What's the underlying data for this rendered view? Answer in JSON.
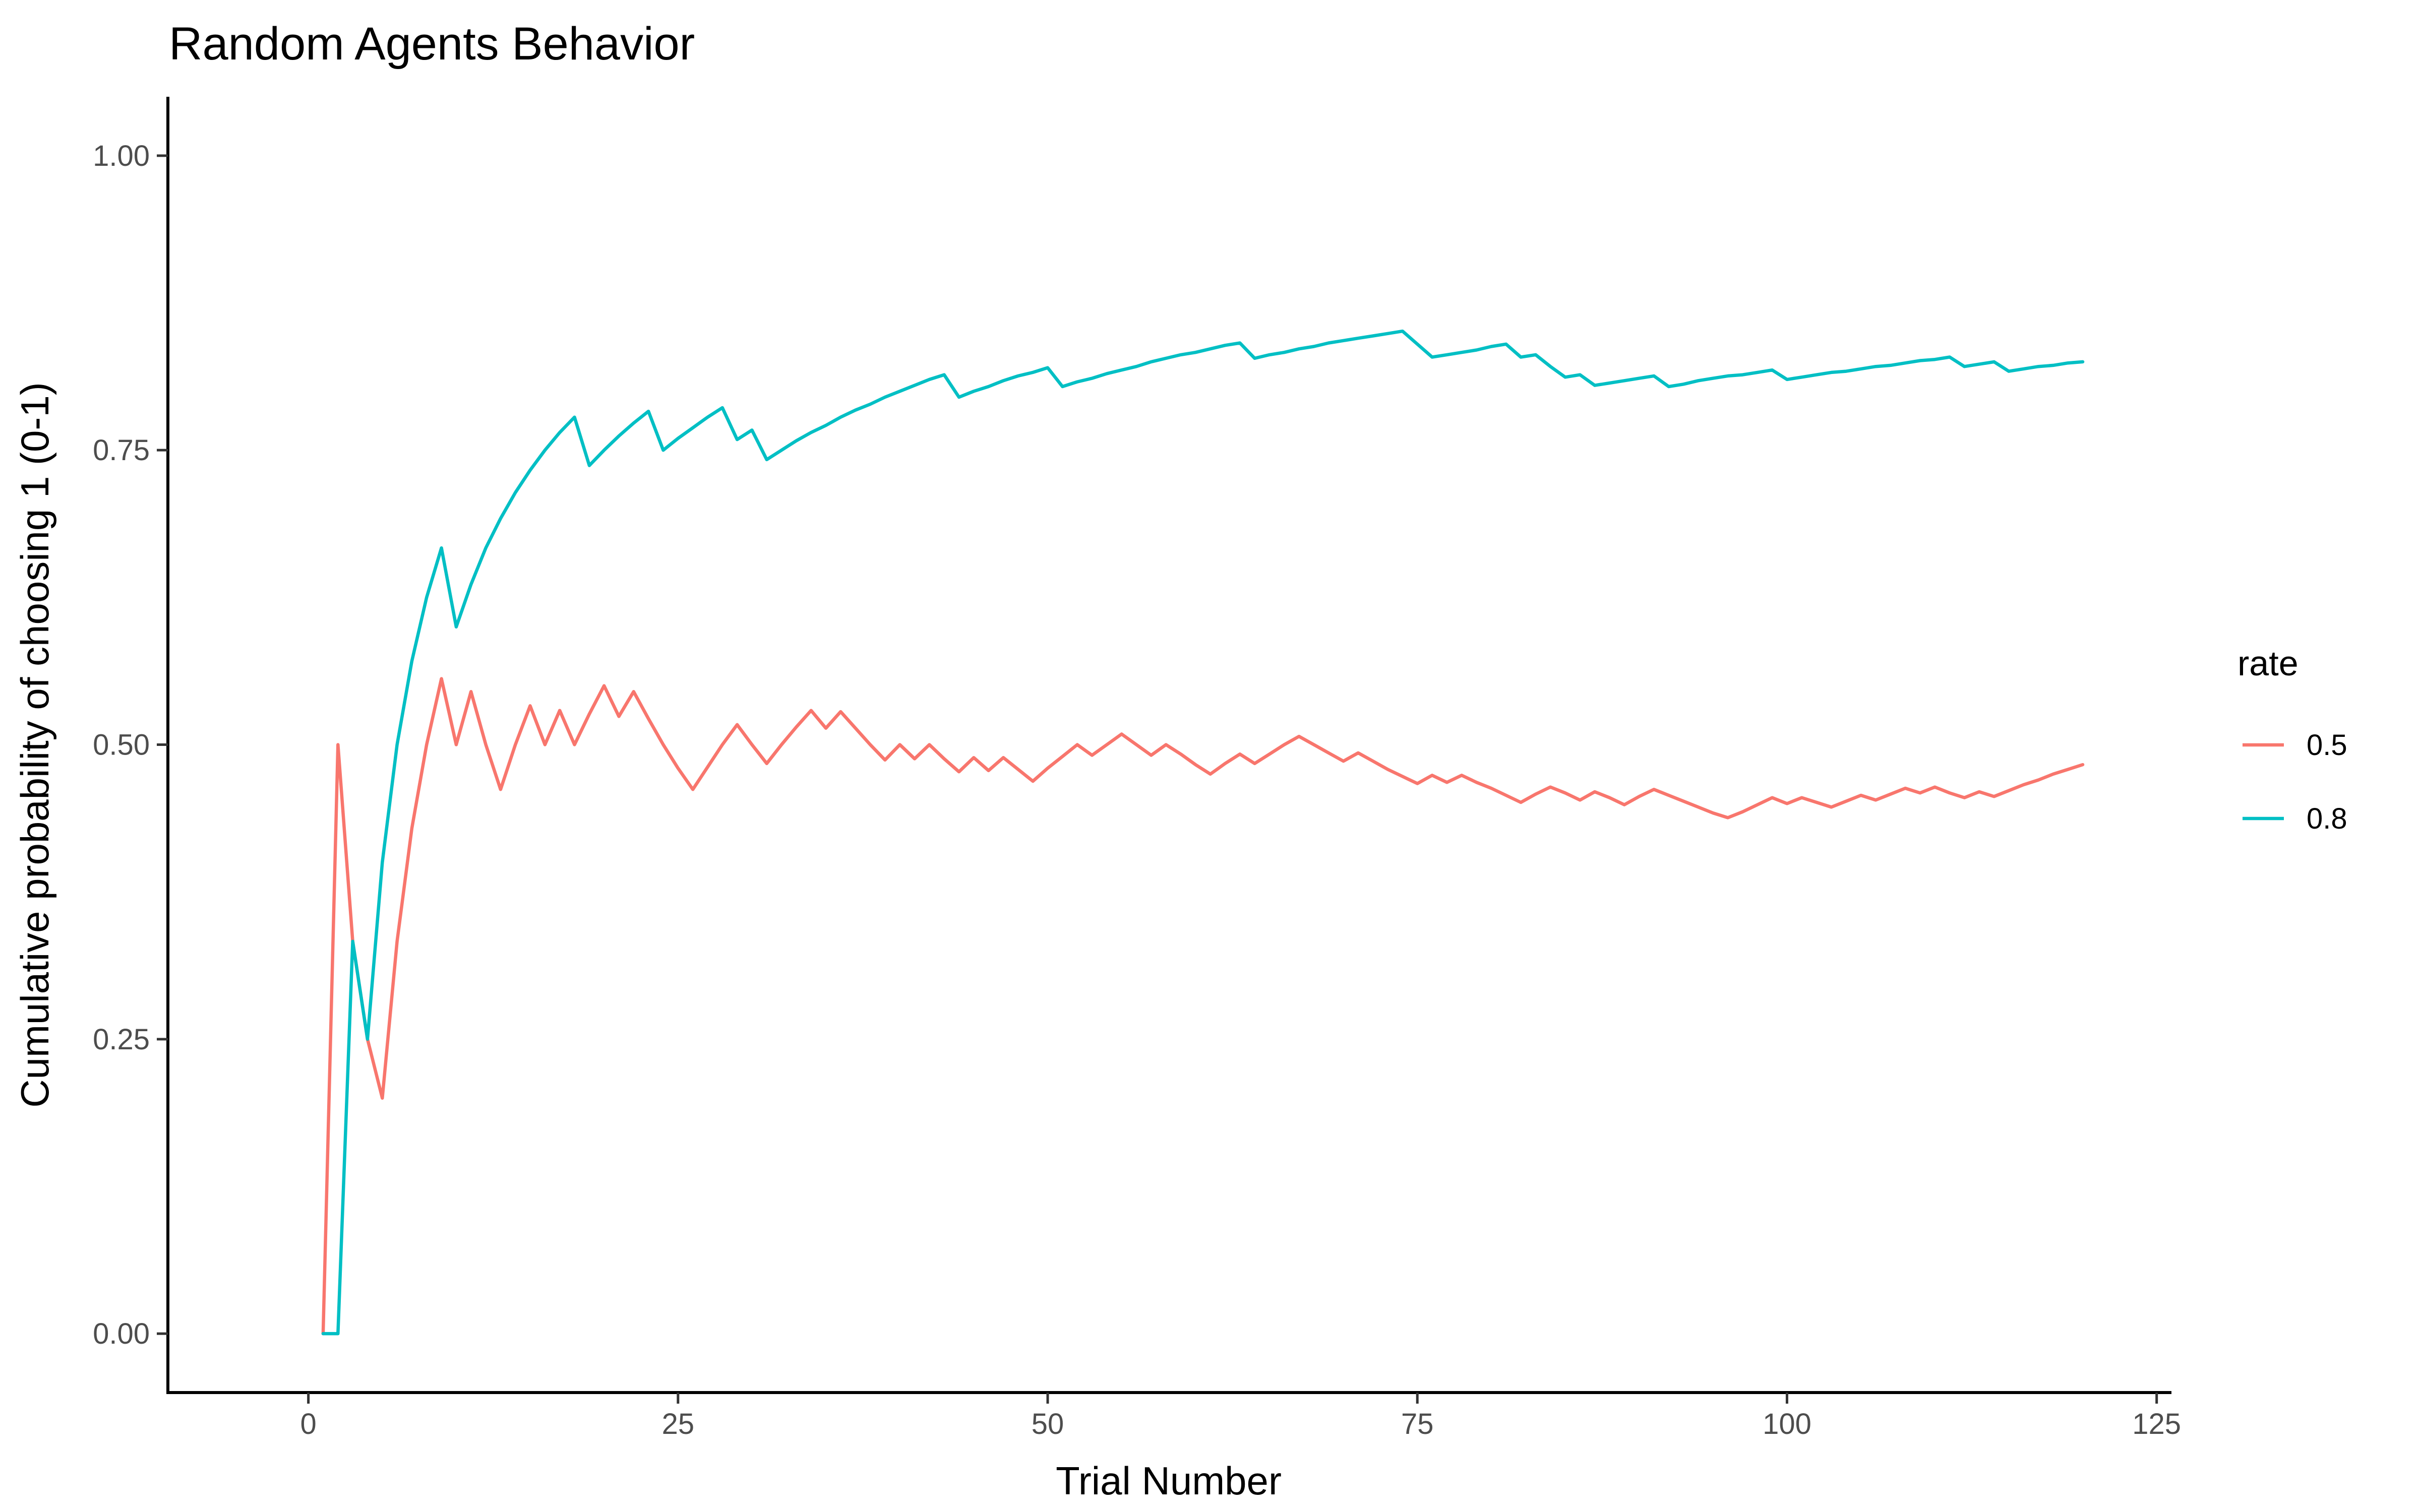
{
  "chart_data": {
    "type": "line",
    "title": "Random Agents Behavior",
    "xlabel": "Trial Number",
    "ylabel": "Cumulative probability of choosing 1 (0-1)",
    "xlim": [
      -9.5,
      126
    ],
    "ylim": [
      -0.05,
      1.05
    ],
    "x_ticks": [
      0,
      25,
      50,
      75,
      100,
      125
    ],
    "y_ticks": [
      0,
      0.25,
      0.5,
      0.75,
      1.0
    ],
    "x_tick_labels": [
      "0",
      "25",
      "50",
      "75",
      "100",
      "125"
    ],
    "y_tick_labels": [
      "0.00",
      "0.25",
      "0.50",
      "0.75",
      "1.00"
    ],
    "grid": false,
    "legend": {
      "title": "rate",
      "position": "right",
      "entries": [
        "0.5",
        "0.8"
      ]
    },
    "series": [
      {
        "name": "0.5",
        "color": "#F8766D",
        "x": [
          1,
          2,
          3,
          4,
          5,
          6,
          7,
          8,
          9,
          10,
          11,
          12,
          13,
          14,
          15,
          16,
          17,
          18,
          19,
          20,
          21,
          22,
          23,
          24,
          25,
          26,
          27,
          28,
          29,
          30,
          31,
          32,
          33,
          34,
          35,
          36,
          37,
          38,
          39,
          40,
          41,
          42,
          43,
          44,
          45,
          46,
          47,
          48,
          49,
          50,
          51,
          52,
          53,
          54,
          55,
          56,
          57,
          58,
          59,
          60,
          61,
          62,
          63,
          64,
          65,
          66,
          67,
          68,
          69,
          70,
          71,
          72,
          73,
          74,
          75,
          76,
          77,
          78,
          79,
          80,
          81,
          82,
          83,
          84,
          85,
          86,
          87,
          88,
          89,
          90,
          91,
          92,
          93,
          94,
          95,
          96,
          97,
          98,
          99,
          100,
          101,
          102,
          103,
          104,
          105,
          106,
          107,
          108,
          109,
          110,
          111,
          112,
          113,
          114,
          115,
          116,
          117,
          118,
          119,
          120
        ],
        "values": [
          0,
          0.5,
          0.333,
          0.25,
          0.2,
          0.333,
          0.429,
          0.5,
          0.556,
          0.5,
          0.545,
          0.5,
          0.462,
          0.5,
          0.533,
          0.5,
          0.529,
          0.5,
          0.526,
          0.55,
          0.524,
          0.545,
          0.522,
          0.5,
          0.48,
          0.462,
          0.481,
          0.5,
          0.517,
          0.5,
          0.484,
          0.5,
          0.515,
          0.529,
          0.514,
          0.528,
          0.514,
          0.5,
          0.487,
          0.5,
          0.488,
          0.5,
          0.488,
          0.477,
          0.489,
          0.478,
          0.489,
          0.479,
          0.469,
          0.48,
          0.49,
          0.5,
          0.491,
          0.5,
          0.509,
          0.5,
          0.491,
          0.5,
          0.492,
          0.483,
          0.475,
          0.484,
          0.492,
          0.484,
          0.492,
          0.5,
          0.507,
          0.5,
          0.493,
          0.486,
          0.493,
          0.486,
          0.479,
          0.473,
          0.467,
          0.474,
          0.468,
          0.474,
          0.468,
          0.463,
          0.457,
          0.451,
          0.458,
          0.464,
          0.459,
          0.453,
          0.46,
          0.455,
          0.449,
          0.456,
          0.462,
          0.457,
          0.452,
          0.447,
          0.442,
          0.438,
          0.443,
          0.449,
          0.455,
          0.45,
          0.455,
          0.451,
          0.447,
          0.452,
          0.457,
          0.453,
          0.458,
          0.463,
          0.459,
          0.464,
          0.459,
          0.455,
          0.46,
          0.456,
          0.461,
          0.466,
          0.47,
          0.475,
          0.479,
          0.483
        ]
      },
      {
        "name": "0.8",
        "color": "#00BFC4",
        "x": [
          1,
          2,
          3,
          4,
          5,
          6,
          7,
          8,
          9,
          10,
          11,
          12,
          13,
          14,
          15,
          16,
          17,
          18,
          19,
          20,
          21,
          22,
          23,
          24,
          25,
          26,
          27,
          28,
          29,
          30,
          31,
          32,
          33,
          34,
          35,
          36,
          37,
          38,
          39,
          40,
          41,
          42,
          43,
          44,
          45,
          46,
          47,
          48,
          49,
          50,
          51,
          52,
          53,
          54,
          55,
          56,
          57,
          58,
          59,
          60,
          61,
          62,
          63,
          64,
          65,
          66,
          67,
          68,
          69,
          70,
          71,
          72,
          73,
          74,
          75,
          76,
          77,
          78,
          79,
          80,
          81,
          82,
          83,
          84,
          85,
          86,
          87,
          88,
          89,
          90,
          91,
          92,
          93,
          94,
          95,
          96,
          97,
          98,
          99,
          100,
          101,
          102,
          103,
          104,
          105,
          106,
          107,
          108,
          109,
          110,
          111,
          112,
          113,
          114,
          115,
          116,
          117,
          118,
          119,
          120
        ],
        "values": [
          0,
          0,
          0.333,
          0.25,
          0.4,
          0.5,
          0.571,
          0.625,
          0.667,
          0.6,
          0.636,
          0.667,
          0.692,
          0.714,
          0.733,
          0.75,
          0.765,
          0.778,
          0.737,
          0.75,
          0.762,
          0.773,
          0.783,
          0.75,
          0.76,
          0.769,
          0.778,
          0.786,
          0.759,
          0.767,
          0.742,
          0.75,
          0.758,
          0.765,
          0.771,
          0.778,
          0.784,
          0.789,
          0.795,
          0.8,
          0.805,
          0.81,
          0.814,
          0.795,
          0.8,
          0.804,
          0.809,
          0.813,
          0.816,
          0.82,
          0.804,
          0.808,
          0.811,
          0.815,
          0.818,
          0.821,
          0.825,
          0.828,
          0.831,
          0.833,
          0.836,
          0.839,
          0.841,
          0.828,
          0.831,
          0.833,
          0.836,
          0.838,
          0.841,
          0.843,
          0.845,
          0.847,
          0.849,
          0.851,
          0.84,
          0.829,
          0.831,
          0.833,
          0.835,
          0.838,
          0.84,
          0.829,
          0.831,
          0.821,
          0.812,
          0.814,
          0.805,
          0.807,
          0.809,
          0.811,
          0.813,
          0.804,
          0.806,
          0.809,
          0.811,
          0.813,
          0.814,
          0.816,
          0.818,
          0.81,
          0.812,
          0.814,
          0.816,
          0.817,
          0.819,
          0.821,
          0.822,
          0.824,
          0.826,
          0.827,
          0.829,
          0.821,
          0.823,
          0.825,
          0.817,
          0.819,
          0.821,
          0.822,
          0.824,
          0.825
        ]
      }
    ]
  }
}
